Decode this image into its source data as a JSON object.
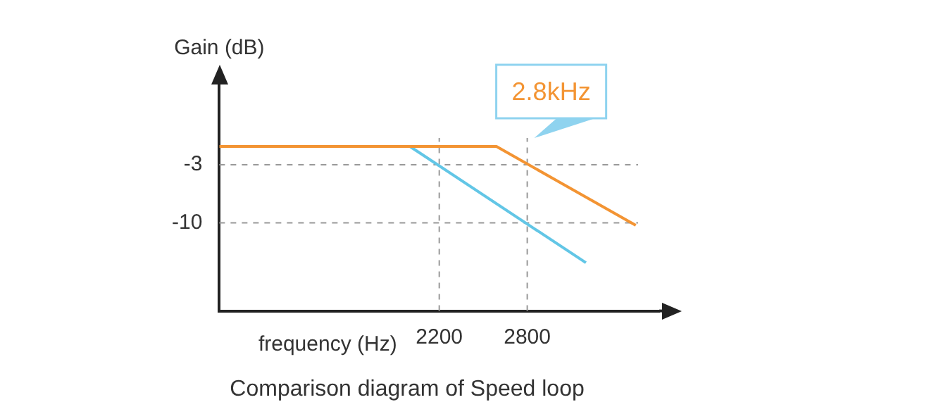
{
  "chart_data": {
    "type": "line",
    "title": "Comparison diagram of Speed loop",
    "xlabel": "frequency (Hz)",
    "ylabel": "Gain (dB)",
    "series": [
      {
        "color": "#f39433",
        "x": [
          700,
          2590,
          3540
        ],
        "values": [
          -0.8,
          -0.8,
          -10.3
        ]
      },
      {
        "color": "#62c6e6",
        "x": [
          2000,
          3200
        ],
        "values": [
          -0.8,
          -14.8
        ]
      }
    ],
    "xlim": [
      700,
      3700
    ],
    "xticks": [
      2200,
      2800
    ],
    "ylim": [
      -20.6,
      7
    ],
    "yticks": [
      -3,
      -10
    ],
    "grid": false,
    "legend": false,
    "ref_lines": [
      {
        "axis": "y",
        "value": -3,
        "color": "#999999",
        "line_style": "dashed"
      },
      {
        "axis": "y",
        "value": -10,
        "color": "#999999",
        "line_style": "dashed"
      },
      {
        "axis": "x",
        "value": 2200,
        "color": "#999999",
        "line_style": "dashed"
      },
      {
        "axis": "x",
        "value": 2800,
        "color": "#999999",
        "line_style": "dashed"
      }
    ],
    "annotations": [
      {
        "text": "2.8kHz",
        "x": 2800,
        "y": -0.8
      }
    ]
  }
}
